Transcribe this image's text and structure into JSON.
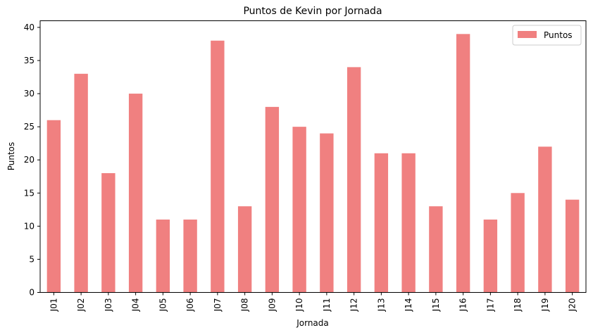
{
  "chart_data": {
    "type": "bar",
    "title": "Puntos de Kevin por Jornada",
    "xlabel": "Jornada",
    "ylabel": "Puntos",
    "categories": [
      "J01",
      "J02",
      "J03",
      "J04",
      "J05",
      "J06",
      "J07",
      "J08",
      "J09",
      "J10",
      "J11",
      "J12",
      "J13",
      "J14",
      "J15",
      "J16",
      "J17",
      "J18",
      "J19",
      "J20"
    ],
    "series": [
      {
        "name": "Puntos",
        "values": [
          26,
          33,
          18,
          30,
          11,
          11,
          38,
          13,
          28,
          25,
          24,
          34,
          21,
          21,
          13,
          39,
          11,
          15,
          22,
          14
        ]
      }
    ],
    "ylim": [
      0,
      41
    ],
    "yticks": [
      0,
      5,
      10,
      15,
      20,
      25,
      30,
      35,
      40
    ],
    "grid": false,
    "legend": "top-right",
    "bar_color": "#f08080"
  }
}
